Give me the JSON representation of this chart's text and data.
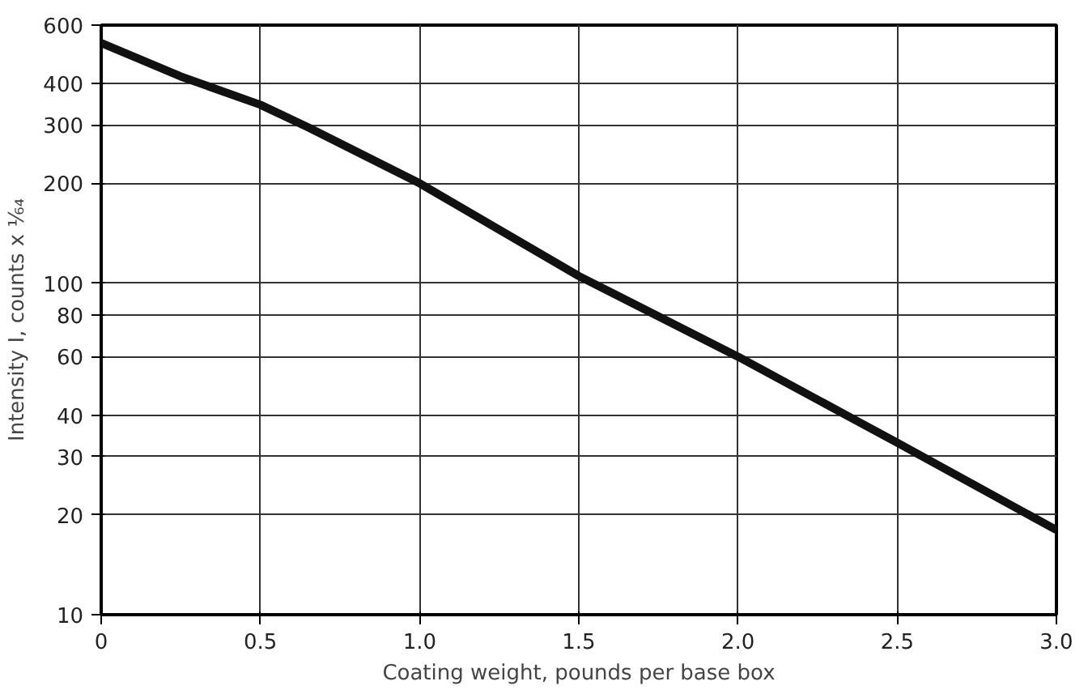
{
  "chart_data": {
    "type": "line",
    "xlabel": "Coating weight, pounds per base box",
    "ylabel": "Intensity I, counts x ¹⁄₆₄",
    "series": [
      {
        "color": "#111111",
        "x": [
          0,
          0.25,
          0.5,
          0.65,
          1.0,
          1.5,
          2.0,
          2.5,
          3.0
        ],
        "values": [
          530,
          420,
          345,
          295,
          200,
          105,
          60,
          33,
          18
        ]
      }
    ],
    "xlim": [
      0,
      3.0
    ],
    "ylim": [
      10,
      600
    ],
    "log": "y",
    "xticks": [
      0,
      {
        "value": 0.5,
        "label": "0.5"
      },
      {
        "value": 1.0,
        "label": "1.0"
      },
      {
        "value": 1.5,
        "label": "1.5"
      },
      {
        "value": 2.0,
        "label": "2.0"
      },
      {
        "value": 2.5,
        "label": "2.5"
      },
      {
        "value": 3.0,
        "label": "3.0"
      }
    ],
    "yticks": [
      10,
      20,
      30,
      40,
      60,
      80,
      100,
      200,
      300,
      400,
      600
    ],
    "grid": true,
    "marker": "none",
    "line_style": "solid"
  }
}
